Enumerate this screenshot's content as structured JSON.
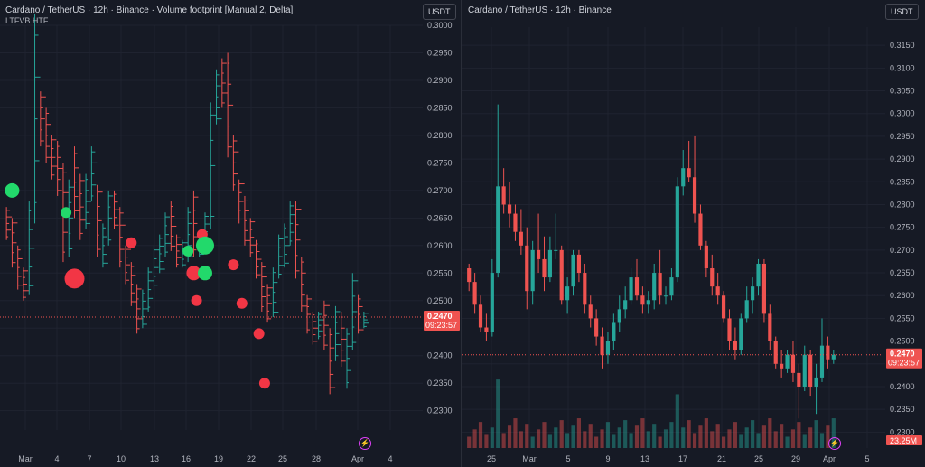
{
  "colors": {
    "up": "#26a69a",
    "down": "#ef5350",
    "bubble_up": "#22d96b",
    "bubble_down": "#f23645",
    "grid": "#1f2330",
    "price_line": "#ef5350"
  },
  "left_chart": {
    "title": "Cardano / TetherUS · 12h · Binance · Volume footprint [Manual 2, Delta]",
    "subtitle": "LTFVB HTF",
    "currency": "USDT",
    "price_label": "0.2470",
    "countdown": "09:23:57",
    "bolt_icon": "lightning-icon"
  },
  "right_chart": {
    "title": "Cardano / TetherUS · 12h · Binance",
    "currency": "USDT",
    "price_label": "0.2470",
    "countdown": "09:23:57",
    "volume_label": "23.25M",
    "bolt_icon": "lightning-icon"
  },
  "chart_data": [
    {
      "type": "candlestick",
      "title": "Cardano / TetherUS · 12h · Binance · Volume footprint [Manual 2, Delta]",
      "y_ticks": [
        "0.3000",
        "0.2950",
        "0.2900",
        "0.2850",
        "0.2800",
        "0.2750",
        "0.2700",
        "0.2650",
        "0.2600",
        "0.2550",
        "0.2500",
        "0.2450",
        "0.2400",
        "0.2350",
        "0.2300"
      ],
      "x_ticks": [
        "Mar",
        "4",
        "7",
        "10",
        "13",
        "16",
        "19",
        "22",
        "25",
        "28",
        "Apr",
        "4"
      ],
      "ylim": [
        0.2265,
        0.3
      ],
      "current_price": 0.247,
      "delta_bubbles": [
        {
          "x": 1.5,
          "price": 0.27,
          "size": 8,
          "dir": "up"
        },
        {
          "x": 11,
          "price": 0.266,
          "size": 6,
          "dir": "up"
        },
        {
          "x": 12.5,
          "price": 0.254,
          "size": 11,
          "dir": "down"
        },
        {
          "x": 22.5,
          "price": 0.2605,
          "size": 6,
          "dir": "down"
        },
        {
          "x": 32.5,
          "price": 0.259,
          "size": 6,
          "dir": "up"
        },
        {
          "x": 33.5,
          "price": 0.255,
          "size": 8,
          "dir": "down"
        },
        {
          "x": 34,
          "price": 0.25,
          "size": 6,
          "dir": "down"
        },
        {
          "x": 35,
          "price": 0.262,
          "size": 6,
          "dir": "down"
        },
        {
          "x": 35.5,
          "price": 0.26,
          "size": 10,
          "dir": "up"
        },
        {
          "x": 35.5,
          "price": 0.255,
          "size": 8,
          "dir": "up"
        },
        {
          "x": 40.5,
          "price": 0.2565,
          "size": 6,
          "dir": "down"
        },
        {
          "x": 42,
          "price": 0.2495,
          "size": 6,
          "dir": "down"
        },
        {
          "x": 45,
          "price": 0.244,
          "size": 6,
          "dir": "down"
        },
        {
          "x": 46,
          "price": 0.235,
          "size": 6,
          "dir": "down"
        }
      ]
    },
    {
      "type": "candlestick",
      "title": "Cardano / TetherUS · 12h · Binance",
      "y_ticks": [
        "0.3150",
        "0.3100",
        "0.3050",
        "0.3000",
        "0.2950",
        "0.2900",
        "0.2850",
        "0.2800",
        "0.2750",
        "0.2700",
        "0.2650",
        "0.2600",
        "0.2550",
        "0.2500",
        "0.2450",
        "0.2400",
        "0.2350",
        "0.2300"
      ],
      "x_ticks": [
        "25",
        "Mar",
        "5",
        "9",
        "13",
        "17",
        "21",
        "25",
        "29",
        "Apr",
        "5"
      ],
      "ylim": [
        0.2265,
        0.319
      ],
      "current_price": 0.247,
      "volume_last": "23.25M",
      "candles": [
        {
          "o": 0.266,
          "h": 0.267,
          "l": 0.261,
          "c": 0.263
        },
        {
          "o": 0.263,
          "h": 0.265,
          "l": 0.256,
          "c": 0.258
        },
        {
          "o": 0.258,
          "h": 0.26,
          "l": 0.252,
          "c": 0.253
        },
        {
          "o": 0.253,
          "h": 0.256,
          "l": 0.25,
          "c": 0.252
        },
        {
          "o": 0.252,
          "h": 0.268,
          "l": 0.251,
          "c": 0.265
        },
        {
          "o": 0.265,
          "h": 0.302,
          "l": 0.264,
          "c": 0.284
        },
        {
          "o": 0.284,
          "h": 0.288,
          "l": 0.278,
          "c": 0.28
        },
        {
          "o": 0.28,
          "h": 0.285,
          "l": 0.275,
          "c": 0.278
        },
        {
          "o": 0.278,
          "h": 0.28,
          "l": 0.272,
          "c": 0.274
        },
        {
          "o": 0.274,
          "h": 0.279,
          "l": 0.269,
          "c": 0.271
        },
        {
          "o": 0.271,
          "h": 0.275,
          "l": 0.257,
          "c": 0.261
        },
        {
          "o": 0.261,
          "h": 0.272,
          "l": 0.258,
          "c": 0.27
        },
        {
          "o": 0.27,
          "h": 0.278,
          "l": 0.265,
          "c": 0.268
        },
        {
          "o": 0.268,
          "h": 0.273,
          "l": 0.261,
          "c": 0.264
        },
        {
          "o": 0.264,
          "h": 0.273,
          "l": 0.263,
          "c": 0.27
        },
        {
          "o": 0.27,
          "h": 0.278,
          "l": 0.268,
          "c": 0.27
        },
        {
          "o": 0.27,
          "h": 0.271,
          "l": 0.258,
          "c": 0.259
        },
        {
          "o": 0.259,
          "h": 0.264,
          "l": 0.256,
          "c": 0.262
        },
        {
          "o": 0.262,
          "h": 0.27,
          "l": 0.26,
          "c": 0.269
        },
        {
          "o": 0.269,
          "h": 0.27,
          "l": 0.263,
          "c": 0.265
        },
        {
          "o": 0.265,
          "h": 0.267,
          "l": 0.256,
          "c": 0.258
        },
        {
          "o": 0.258,
          "h": 0.26,
          "l": 0.253,
          "c": 0.255
        },
        {
          "o": 0.255,
          "h": 0.257,
          "l": 0.249,
          "c": 0.251
        },
        {
          "o": 0.251,
          "h": 0.253,
          "l": 0.244,
          "c": 0.247
        },
        {
          "o": 0.247,
          "h": 0.252,
          "l": 0.245,
          "c": 0.25
        },
        {
          "o": 0.25,
          "h": 0.256,
          "l": 0.248,
          "c": 0.254
        },
        {
          "o": 0.254,
          "h": 0.26,
          "l": 0.252,
          "c": 0.257
        },
        {
          "o": 0.257,
          "h": 0.262,
          "l": 0.255,
          "c": 0.259
        },
        {
          "o": 0.259,
          "h": 0.266,
          "l": 0.258,
          "c": 0.264
        },
        {
          "o": 0.264,
          "h": 0.268,
          "l": 0.259,
          "c": 0.26
        },
        {
          "o": 0.26,
          "h": 0.262,
          "l": 0.256,
          "c": 0.258
        },
        {
          "o": 0.258,
          "h": 0.261,
          "l": 0.256,
          "c": 0.259
        },
        {
          "o": 0.259,
          "h": 0.267,
          "l": 0.257,
          "c": 0.265
        },
        {
          "o": 0.265,
          "h": 0.27,
          "l": 0.258,
          "c": 0.26
        },
        {
          "o": 0.26,
          "h": 0.262,
          "l": 0.258,
          "c": 0.26
        },
        {
          "o": 0.26,
          "h": 0.266,
          "l": 0.259,
          "c": 0.264
        },
        {
          "o": 0.264,
          "h": 0.286,
          "l": 0.263,
          "c": 0.284
        },
        {
          "o": 0.284,
          "h": 0.292,
          "l": 0.282,
          "c": 0.288
        },
        {
          "o": 0.288,
          "h": 0.294,
          "l": 0.285,
          "c": 0.286
        },
        {
          "o": 0.286,
          "h": 0.295,
          "l": 0.276,
          "c": 0.278
        },
        {
          "o": 0.278,
          "h": 0.28,
          "l": 0.27,
          "c": 0.271
        },
        {
          "o": 0.271,
          "h": 0.272,
          "l": 0.264,
          "c": 0.266
        },
        {
          "o": 0.266,
          "h": 0.269,
          "l": 0.26,
          "c": 0.262
        },
        {
          "o": 0.262,
          "h": 0.265,
          "l": 0.258,
          "c": 0.26
        },
        {
          "o": 0.26,
          "h": 0.261,
          "l": 0.254,
          "c": 0.255
        },
        {
          "o": 0.255,
          "h": 0.257,
          "l": 0.248,
          "c": 0.25
        },
        {
          "o": 0.25,
          "h": 0.253,
          "l": 0.246,
          "c": 0.248
        },
        {
          "o": 0.248,
          "h": 0.256,
          "l": 0.247,
          "c": 0.255
        },
        {
          "o": 0.255,
          "h": 0.262,
          "l": 0.254,
          "c": 0.259
        },
        {
          "o": 0.259,
          "h": 0.264,
          "l": 0.256,
          "c": 0.262
        },
        {
          "o": 0.262,
          "h": 0.268,
          "l": 0.26,
          "c": 0.267
        },
        {
          "o": 0.267,
          "h": 0.268,
          "l": 0.254,
          "c": 0.256
        },
        {
          "o": 0.256,
          "h": 0.258,
          "l": 0.248,
          "c": 0.25
        },
        {
          "o": 0.25,
          "h": 0.251,
          "l": 0.244,
          "c": 0.245
        },
        {
          "o": 0.245,
          "h": 0.248,
          "l": 0.242,
          "c": 0.244
        },
        {
          "o": 0.244,
          "h": 0.248,
          "l": 0.243,
          "c": 0.247
        },
        {
          "o": 0.247,
          "h": 0.25,
          "l": 0.241,
          "c": 0.243
        },
        {
          "o": 0.243,
          "h": 0.245,
          "l": 0.233,
          "c": 0.24
        },
        {
          "o": 0.24,
          "h": 0.249,
          "l": 0.239,
          "c": 0.247
        },
        {
          "o": 0.247,
          "h": 0.248,
          "l": 0.238,
          "c": 0.24
        },
        {
          "o": 0.24,
          "h": 0.245,
          "l": 0.234,
          "c": 0.242
        },
        {
          "o": 0.242,
          "h": 0.255,
          "l": 0.241,
          "c": 0.249
        },
        {
          "o": 0.249,
          "h": 0.251,
          "l": 0.244,
          "c": 0.246
        },
        {
          "o": 0.246,
          "h": 0.248,
          "l": 0.245,
          "c": 0.247
        }
      ]
    }
  ]
}
